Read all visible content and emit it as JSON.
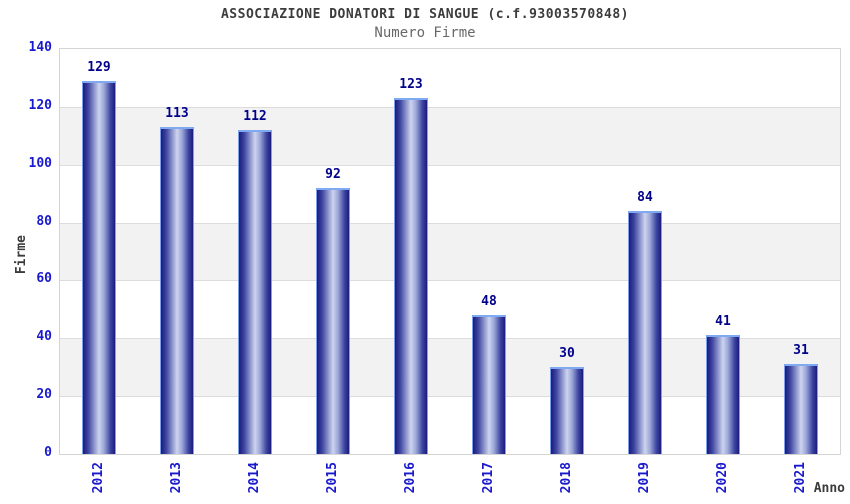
{
  "chart_data": {
    "type": "bar",
    "title": "ASSOCIAZIONE DONATORI DI SANGUE (c.f.93003570848)",
    "subtitle": "Numero Firme",
    "xlabel": "Anno",
    "ylabel": "Firme",
    "categories": [
      "2012",
      "2013",
      "2014",
      "2015",
      "2016",
      "2017",
      "2018",
      "2019",
      "2020",
      "2021"
    ],
    "values": [
      129,
      113,
      112,
      92,
      123,
      48,
      30,
      84,
      41,
      31
    ],
    "ylim": [
      0,
      140
    ],
    "yticks": [
      0,
      20,
      40,
      60,
      80,
      100,
      120,
      140
    ],
    "grid": "on",
    "legend": "none",
    "colors": {
      "bar_dark": "#1b1b7e",
      "bar_mid": "#3d44a0",
      "bar_light": "#ccd4ee",
      "bar_border": "#7fa9f0",
      "tick_label": "#1a1acd",
      "value_label": "#00008b",
      "band": "#f2f2f2",
      "gridline": "#dcdcdc",
      "plot_border": "#d4d4d4",
      "title_color": "#3c3c3c",
      "subtitle_color": "#686868"
    }
  }
}
